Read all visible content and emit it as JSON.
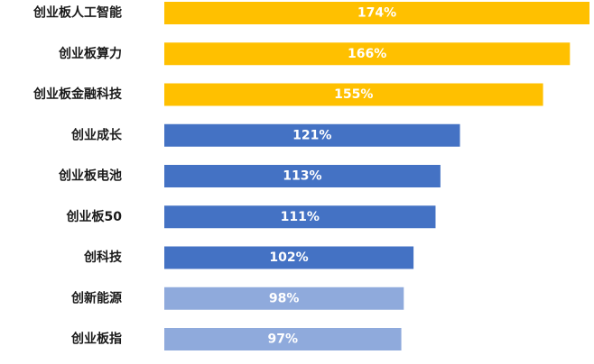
{
  "chart_data": {
    "type": "bar",
    "orientation": "horizontal",
    "title": "",
    "xlabel": "",
    "ylabel": "",
    "xlim": [
      0,
      174
    ],
    "grid": false,
    "legend": "none",
    "categories": [
      "创业板人工智能",
      "创业板算力",
      "创业板金融科技",
      "创业成长",
      "创业板电池",
      "创业板50",
      "创科技",
      "创新能源",
      "创业板指"
    ],
    "values": [
      174,
      166,
      155,
      121,
      113,
      111,
      102,
      98,
      97
    ],
    "value_labels": [
      "174%",
      "166%",
      "155%",
      "121%",
      "113%",
      "111%",
      "102%",
      "98%",
      "97%"
    ],
    "bar_colors": [
      "#FFC000",
      "#FFC000",
      "#FFC000",
      "#4472C4",
      "#4472C4",
      "#4472C4",
      "#4472C4",
      "#8FAADC",
      "#8FAADC"
    ]
  }
}
